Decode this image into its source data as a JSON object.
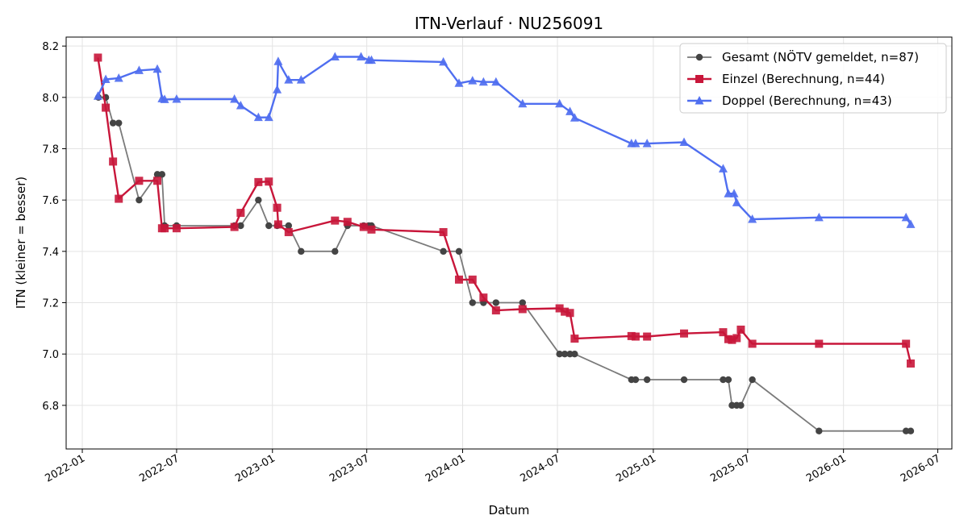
{
  "chart_data": {
    "type": "line",
    "title": "ITN-Verlauf · NU256091",
    "xlabel": "Datum",
    "ylabel": "ITN  (kleiner = besser)",
    "x_type": "date",
    "xlim": [
      "2021-12-01",
      "2026-07-28"
    ],
    "ylim": [
      6.63,
      8.235
    ],
    "x_ticks": [
      "2022-01-01",
      "2022-07-01",
      "2023-01-01",
      "2023-07-01",
      "2024-01-01",
      "2024-07-01",
      "2025-01-01",
      "2025-07-01",
      "2026-01-01",
      "2026-07-01"
    ],
    "x_tick_labels": [
      "2022-01",
      "2022-07",
      "2023-01",
      "2023-07",
      "2024-01",
      "2024-07",
      "2025-01",
      "2025-07",
      "2026-01",
      "2026-07"
    ],
    "y_ticks": [
      6.8,
      7.0,
      7.2,
      7.4,
      7.6,
      7.8,
      8.0,
      8.2
    ],
    "y_tick_labels": [
      "6.8",
      "7.0",
      "7.2",
      "7.4",
      "7.6",
      "7.8",
      "8.0",
      "8.2"
    ],
    "grid": true,
    "legend_position": "top-right",
    "series": [
      {
        "name": "Gesamt (NÖTV gemeldet, n=87)",
        "color": "#444444",
        "marker": "circle",
        "points": [
          [
            "2022-02-01",
            8.0
          ],
          [
            "2022-02-15",
            8.0
          ],
          [
            "2022-03-01",
            7.9
          ],
          [
            "2022-03-12",
            7.9
          ],
          [
            "2022-04-20",
            7.6
          ],
          [
            "2022-05-25",
            7.7
          ],
          [
            "2022-06-03",
            7.7
          ],
          [
            "2022-06-08",
            7.5
          ],
          [
            "2022-07-01",
            7.5
          ],
          [
            "2022-10-20",
            7.5
          ],
          [
            "2022-11-01",
            7.5
          ],
          [
            "2022-12-05",
            7.6
          ],
          [
            "2022-12-25",
            7.5
          ],
          [
            "2023-01-10",
            7.5
          ],
          [
            "2023-02-01",
            7.5
          ],
          [
            "2023-02-25",
            7.4
          ],
          [
            "2023-05-01",
            7.4
          ],
          [
            "2023-05-25",
            7.5
          ],
          [
            "2023-06-25",
            7.5
          ],
          [
            "2023-07-05",
            7.5
          ],
          [
            "2023-07-10",
            7.5
          ],
          [
            "2023-11-25",
            7.4
          ],
          [
            "2023-12-25",
            7.4
          ],
          [
            "2024-01-20",
            7.2
          ],
          [
            "2024-02-10",
            7.2
          ],
          [
            "2024-03-05",
            7.2
          ],
          [
            "2024-04-25",
            7.2
          ],
          [
            "2024-07-05",
            7.0
          ],
          [
            "2024-07-15",
            7.0
          ],
          [
            "2024-07-25",
            7.0
          ],
          [
            "2024-08-03",
            7.0
          ],
          [
            "2024-11-20",
            6.9
          ],
          [
            "2024-11-28",
            6.9
          ],
          [
            "2024-12-20",
            6.9
          ],
          [
            "2025-03-01",
            6.9
          ],
          [
            "2025-05-15",
            6.9
          ],
          [
            "2025-05-25",
            6.9
          ],
          [
            "2025-06-01",
            6.8
          ],
          [
            "2025-06-10",
            6.8
          ],
          [
            "2025-06-18",
            6.8
          ],
          [
            "2025-07-10",
            6.9
          ],
          [
            "2025-11-15",
            6.7
          ],
          [
            "2026-05-01",
            6.7
          ],
          [
            "2026-05-10",
            6.7
          ]
        ]
      },
      {
        "name": "Einzel (Berechnung, n=44)",
        "color": "#c8163a",
        "marker": "square",
        "points": [
          [
            "2022-01-31",
            8.155
          ],
          [
            "2022-02-15",
            7.96
          ],
          [
            "2022-03-01",
            7.75
          ],
          [
            "2022-03-12",
            7.605
          ],
          [
            "2022-04-20",
            7.675
          ],
          [
            "2022-05-25",
            7.675
          ],
          [
            "2022-06-03",
            7.49
          ],
          [
            "2022-06-08",
            7.49
          ],
          [
            "2022-07-01",
            7.49
          ],
          [
            "2022-10-20",
            7.495
          ],
          [
            "2022-11-01",
            7.55
          ],
          [
            "2022-12-05",
            7.67
          ],
          [
            "2022-12-25",
            7.672
          ],
          [
            "2023-01-10",
            7.57
          ],
          [
            "2023-01-12",
            7.505
          ],
          [
            "2023-02-01",
            7.475
          ],
          [
            "2023-05-01",
            7.52
          ],
          [
            "2023-05-25",
            7.515
          ],
          [
            "2023-06-25",
            7.495
          ],
          [
            "2023-07-10",
            7.485
          ],
          [
            "2023-11-25",
            7.475
          ],
          [
            "2023-12-25",
            7.29
          ],
          [
            "2024-01-20",
            7.29
          ],
          [
            "2024-02-10",
            7.22
          ],
          [
            "2024-03-05",
            7.17
          ],
          [
            "2024-04-25",
            7.175
          ],
          [
            "2024-07-05",
            7.178
          ],
          [
            "2024-07-15",
            7.165
          ],
          [
            "2024-07-25",
            7.16
          ],
          [
            "2024-08-03",
            7.06
          ],
          [
            "2024-11-20",
            7.07
          ],
          [
            "2024-11-28",
            7.068
          ],
          [
            "2024-12-20",
            7.068
          ],
          [
            "2025-03-01",
            7.08
          ],
          [
            "2025-05-15",
            7.085
          ],
          [
            "2025-05-25",
            7.058
          ],
          [
            "2025-06-01",
            7.055
          ],
          [
            "2025-06-10",
            7.062
          ],
          [
            "2025-06-18",
            7.095
          ],
          [
            "2025-07-10",
            7.04
          ],
          [
            "2025-11-15",
            7.04
          ],
          [
            "2026-05-01",
            7.04
          ],
          [
            "2026-05-10",
            6.963
          ]
        ]
      },
      {
        "name": "Doppel (Berechnung, n=43)",
        "color": "#4f6ef0",
        "marker": "triangle",
        "points": [
          [
            "2022-01-31",
            8.005
          ],
          [
            "2022-02-15",
            8.07
          ],
          [
            "2022-03-12",
            8.075
          ],
          [
            "2022-04-20",
            8.105
          ],
          [
            "2022-05-25",
            8.11
          ],
          [
            "2022-06-03",
            7.995
          ],
          [
            "2022-06-08",
            7.992
          ],
          [
            "2022-07-01",
            7.993
          ],
          [
            "2022-10-20",
            7.993
          ],
          [
            "2022-11-01",
            7.968
          ],
          [
            "2022-12-05",
            7.922
          ],
          [
            "2022-12-25",
            7.922
          ],
          [
            "2023-01-10",
            8.03
          ],
          [
            "2023-01-12",
            8.14
          ],
          [
            "2023-02-01",
            8.068
          ],
          [
            "2023-02-25",
            8.068
          ],
          [
            "2023-05-01",
            8.158
          ],
          [
            "2023-06-20",
            8.158
          ],
          [
            "2023-07-05",
            8.145
          ],
          [
            "2023-07-10",
            8.145
          ],
          [
            "2023-11-25",
            8.138
          ],
          [
            "2023-12-25",
            8.055
          ],
          [
            "2024-01-20",
            8.065
          ],
          [
            "2024-02-10",
            8.06
          ],
          [
            "2024-03-05",
            8.06
          ],
          [
            "2024-04-25",
            7.975
          ],
          [
            "2024-07-05",
            7.975
          ],
          [
            "2024-07-25",
            7.945
          ],
          [
            "2024-08-03",
            7.92
          ],
          [
            "2024-11-20",
            7.82
          ],
          [
            "2024-11-28",
            7.82
          ],
          [
            "2024-12-20",
            7.82
          ],
          [
            "2025-03-01",
            7.825
          ],
          [
            "2025-05-15",
            7.722
          ],
          [
            "2025-05-25",
            7.625
          ],
          [
            "2025-06-05",
            7.625
          ],
          [
            "2025-06-10",
            7.59
          ],
          [
            "2025-07-10",
            7.525
          ],
          [
            "2025-11-15",
            7.532
          ],
          [
            "2026-05-01",
            7.532
          ],
          [
            "2026-05-10",
            7.505
          ]
        ]
      }
    ]
  }
}
